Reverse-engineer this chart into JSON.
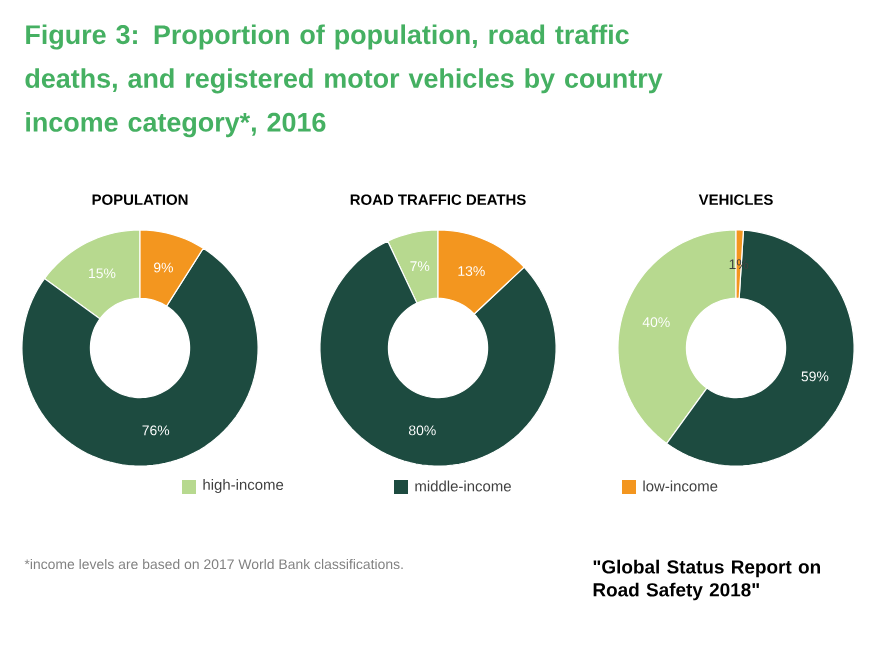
{
  "chart_data": [
    {
      "type": "other",
      "title": "Figure 3: Proportion of population, road traffic deaths, and registered motor vehicles by country income category*, 2016",
      "annotations": [
        "*income levels are based on 2017 World Bank classifications.",
        "\"Global Status Report on Road Safety 2018\""
      ]
    },
    {
      "type": "donut",
      "title": "POPULATION",
      "categories": [
        "high-income",
        "middle-income",
        "low-income"
      ],
      "values": [
        15,
        76,
        9
      ],
      "value_labels": [
        "15%",
        "76%",
        "9%"
      ],
      "colors": [
        "#b7d98f",
        "#1d4b40",
        "#f3961f"
      ],
      "legend": "bottom"
    },
    {
      "type": "donut",
      "title": "ROAD TRAFFIC DEATHS",
      "categories": [
        null,
        null,
        null
      ],
      "values": [
        7,
        80,
        13
      ],
      "value_labels": [
        "7%",
        "80%",
        "13%"
      ],
      "colors": [
        "#b7d98f",
        "#1d4b40",
        "#f3961f"
      ]
    },
    {
      "type": "donut",
      "title": "VEHICLES",
      "categories": [
        null,
        null,
        null
      ],
      "values": [
        40,
        59,
        1
      ],
      "value_labels": [
        "40%",
        "59%",
        "1%"
      ],
      "colors": [
        "#b7d98f",
        "#1d4b40",
        "#f3961f"
      ]
    }
  ]
}
